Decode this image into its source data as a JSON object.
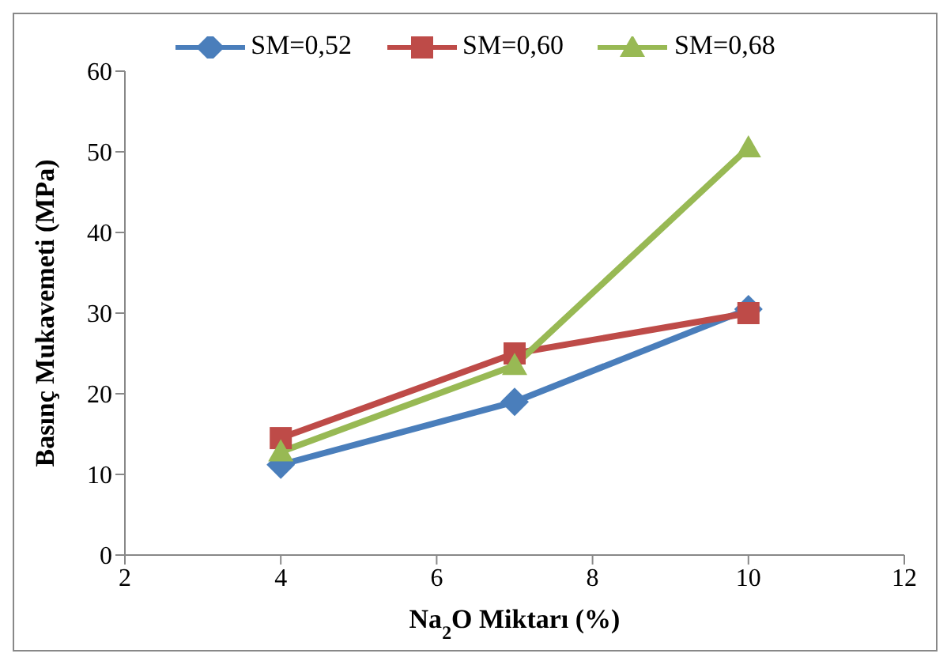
{
  "chart_data": {
    "type": "line",
    "xlabel": "Na$_{2}$O Miktarı (%)",
    "ylabel": "Basınç Mukavemeti (MPa)",
    "x": [
      4,
      7,
      10
    ],
    "series": [
      {
        "name": "SM=0,52",
        "color": "#4a7ebb",
        "values": [
          11.2,
          19,
          30.5
        ],
        "marker": "diamond"
      },
      {
        "name": "SM=0,60",
        "color": "#be4b48",
        "values": [
          14.5,
          25,
          30
        ],
        "marker": "square"
      },
      {
        "name": "SM=0,68",
        "color": "#98b954",
        "values": [
          12.8,
          23.5,
          50.5
        ],
        "marker": "triangle"
      }
    ],
    "xlim": [
      2,
      12
    ],
    "xticks": [
      2,
      4,
      6,
      8,
      10,
      12
    ],
    "ylim": [
      0,
      60
    ],
    "yticks": [
      0,
      10,
      20,
      30,
      40,
      50,
      60
    ],
    "grid": false,
    "legend": "top"
  }
}
